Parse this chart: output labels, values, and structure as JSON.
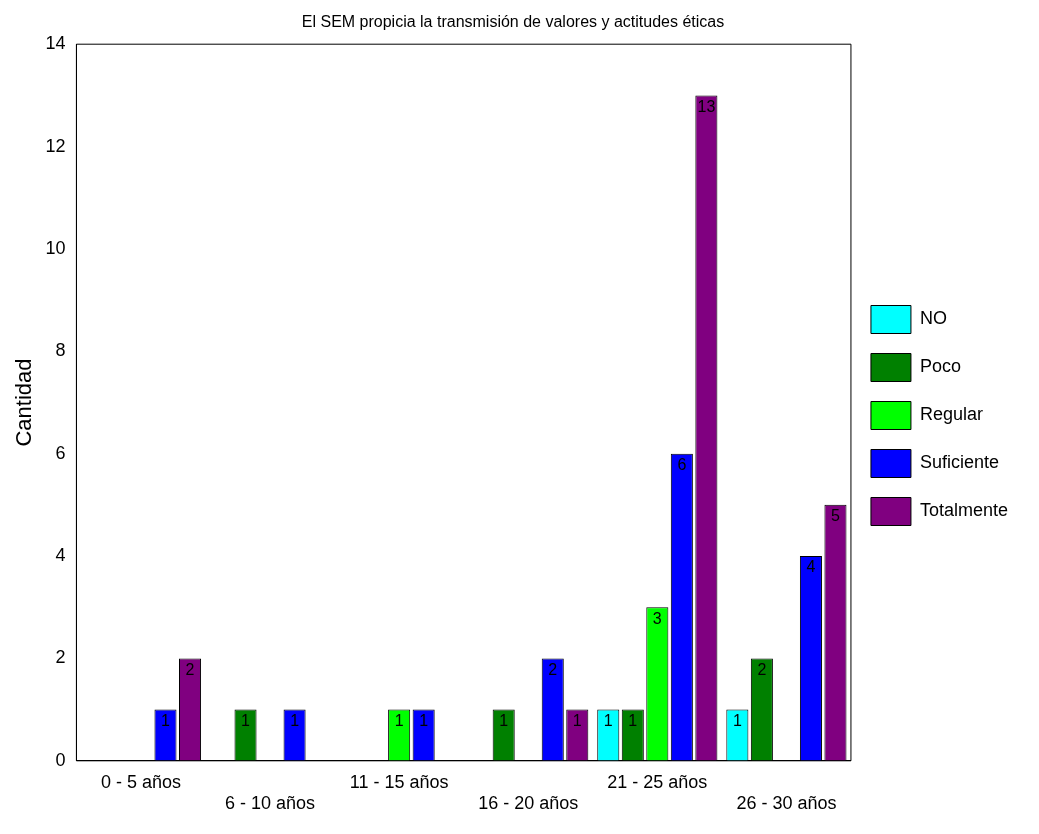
{
  "chart_data": {
    "type": "bar",
    "title": "El SEM propicia la transmisión de valores y actitudes éticas",
    "ylabel": "Cantidad",
    "categories": [
      "0 - 5 años",
      "6 - 10 años",
      "11 - 15 años",
      "16 - 20 años",
      "21 - 25 años",
      "26 - 30 años"
    ],
    "series": [
      {
        "name": "NO",
        "color": "#00ffff",
        "values": [
          null,
          null,
          null,
          null,
          1,
          1
        ]
      },
      {
        "name": "Poco",
        "color": "#008000",
        "values": [
          null,
          1,
          null,
          1,
          1,
          2
        ]
      },
      {
        "name": "Regular",
        "color": "#00ff00",
        "values": [
          null,
          null,
          1,
          null,
          3,
          null
        ]
      },
      {
        "name": "Suficiente",
        "color": "#0000ff",
        "values": [
          1,
          1,
          1,
          2,
          6,
          4
        ]
      },
      {
        "name": "Totalmente",
        "color": "#800080",
        "values": [
          2,
          null,
          null,
          1,
          13,
          5
        ]
      }
    ],
    "ylim": [
      0,
      14
    ],
    "yticks": [
      0,
      2,
      4,
      6,
      8,
      10,
      12,
      14
    ],
    "grid": false,
    "legend": "right",
    "data_labels": true
  }
}
